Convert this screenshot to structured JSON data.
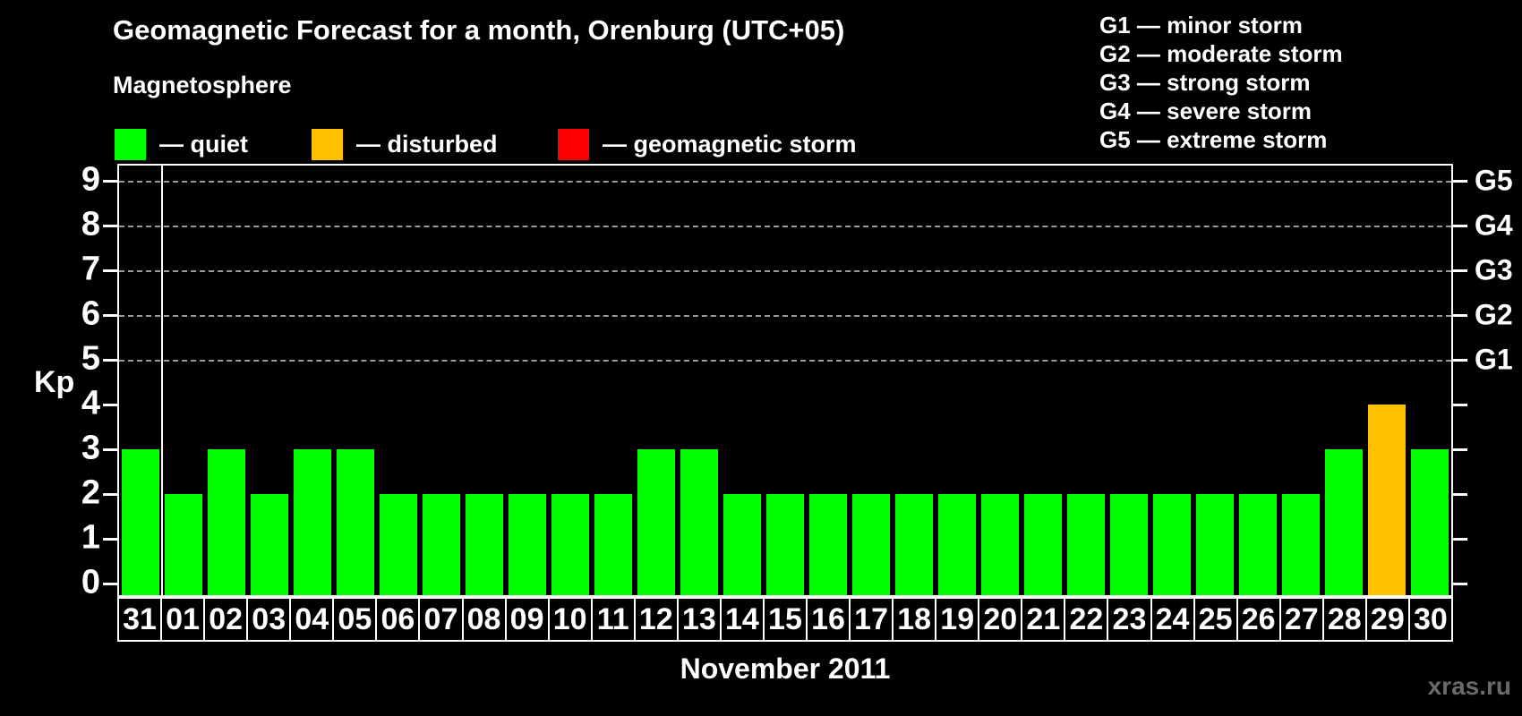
{
  "title": "Geomagnetic Forecast for a month, Orenburg (UTC+05)",
  "subtitle": "Magnetosphere",
  "legend": {
    "items": [
      {
        "label": "— quiet",
        "state": "quiet",
        "color": "#00FF00"
      },
      {
        "label": "— disturbed",
        "state": "disturbed",
        "color": "#FFC000"
      },
      {
        "label": "— geomagnetic storm",
        "state": "storm",
        "color": "#FF0000"
      }
    ]
  },
  "storm_scale_legend": {
    "lines": [
      "G1 — minor storm",
      "G2 — moderate storm",
      "G3 — strong storm",
      "G4 — severe storm",
      "G5 — extreme storm"
    ]
  },
  "watermark": "xras.ru",
  "chart_data": {
    "type": "bar",
    "title": "Geomagnetic Forecast for a month, Orenburg (UTC+05)",
    "xlabel": "November 2011",
    "ylabel": "Kp",
    "ylim": [
      -0.3,
      9.38
    ],
    "yticks": [
      0,
      1,
      2,
      3,
      4,
      5,
      6,
      7,
      8,
      9
    ],
    "gridlines_at": [
      5,
      6,
      7,
      8,
      9
    ],
    "grid": "dashed",
    "right_axis_labels": [
      {
        "label": "G5",
        "kp": 9
      },
      {
        "label": "G4",
        "kp": 8
      },
      {
        "label": "G3",
        "kp": 7
      },
      {
        "label": "G2",
        "kp": 6
      },
      {
        "label": "G1",
        "kp": 5
      }
    ],
    "categories": [
      "31",
      "01",
      "02",
      "03",
      "04",
      "05",
      "06",
      "07",
      "08",
      "09",
      "10",
      "11",
      "12",
      "13",
      "14",
      "15",
      "16",
      "17",
      "18",
      "19",
      "20",
      "21",
      "22",
      "23",
      "24",
      "25",
      "26",
      "27",
      "28",
      "29",
      "30"
    ],
    "values": [
      3,
      2,
      3,
      2,
      3,
      3,
      2,
      2,
      2,
      2,
      2,
      2,
      3,
      3,
      2,
      2,
      2,
      2,
      2,
      2,
      2,
      2,
      2,
      2,
      2,
      2,
      2,
      2,
      3,
      4,
      3
    ],
    "states": [
      "quiet",
      "quiet",
      "quiet",
      "quiet",
      "quiet",
      "quiet",
      "quiet",
      "quiet",
      "quiet",
      "quiet",
      "quiet",
      "quiet",
      "quiet",
      "quiet",
      "quiet",
      "quiet",
      "quiet",
      "quiet",
      "quiet",
      "quiet",
      "quiet",
      "quiet",
      "quiet",
      "quiet",
      "quiet",
      "quiet",
      "quiet",
      "quiet",
      "quiet",
      "disturbed",
      "quiet"
    ],
    "state_colors": {
      "quiet": "#00FF00",
      "disturbed": "#FFC000",
      "storm": "#FF0000"
    },
    "month_separator_after_index": 0,
    "axis_color": "#FFFFFF",
    "gridline_color": "#9B9B9B"
  }
}
